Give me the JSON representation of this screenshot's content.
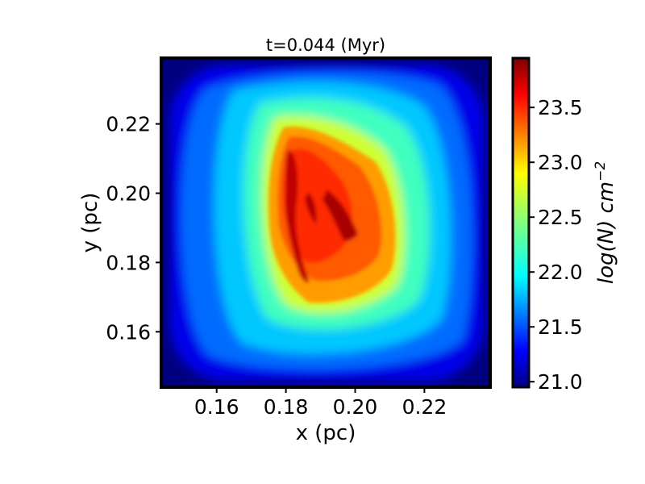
{
  "chart_data": {
    "type": "heatmap",
    "title": "t=0.044 (Myr)",
    "xlabel": "x (pc)",
    "ylabel": "y (pc)",
    "xlim": [
      0.144,
      0.239
    ],
    "ylim": [
      0.144,
      0.239
    ],
    "xticks": [
      {
        "value": 0.16,
        "label": "0.16"
      },
      {
        "value": 0.18,
        "label": "0.18"
      },
      {
        "value": 0.2,
        "label": "0.20"
      },
      {
        "value": 0.22,
        "label": "0.22"
      }
    ],
    "yticks": [
      {
        "value": 0.16,
        "label": "0.16"
      },
      {
        "value": 0.18,
        "label": "0.18"
      },
      {
        "value": 0.2,
        "label": "0.20"
      },
      {
        "value": 0.22,
        "label": "0.22"
      }
    ],
    "colorbar": {
      "label_main": "log(N) cm",
      "label_exp": "−2",
      "colormap": "jet",
      "range": [
        20.95,
        23.95
      ],
      "ticks": [
        {
          "value": 21.0,
          "label": "21.0"
        },
        {
          "value": 21.5,
          "label": "21.5"
        },
        {
          "value": 22.0,
          "label": "22.0"
        },
        {
          "value": 22.5,
          "label": "22.5"
        },
        {
          "value": 23.0,
          "label": "23.0"
        },
        {
          "value": 23.5,
          "label": "23.5"
        }
      ]
    },
    "features": {
      "core_center": [
        0.193,
        0.192
      ],
      "core_peak_log_n": 23.9,
      "background_log_n": 21.0
    }
  }
}
